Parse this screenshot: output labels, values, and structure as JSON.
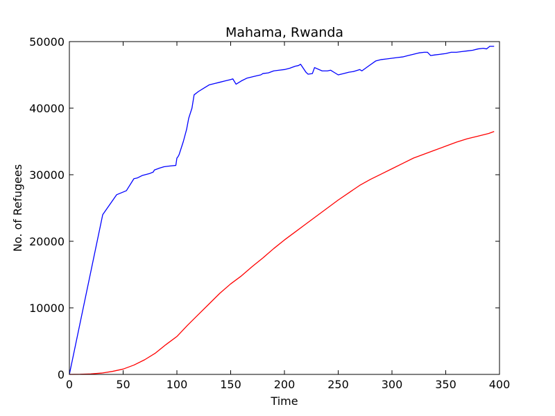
{
  "chart_data": {
    "type": "line",
    "title": "Mahama, Rwanda",
    "xlabel": "Time",
    "ylabel": "No. of Refugees",
    "xlim": [
      0,
      400
    ],
    "ylim": [
      0,
      50000
    ],
    "xticks": [
      0,
      50,
      100,
      150,
      200,
      250,
      300,
      350,
      400
    ],
    "yticks": [
      0,
      10000,
      20000,
      30000,
      40000,
      50000
    ],
    "grid": false,
    "legend": "none",
    "series": [
      {
        "color": "#0000ff",
        "points": [
          [
            0,
            0
          ],
          [
            31,
            24000
          ],
          [
            44,
            27000
          ],
          [
            53,
            27600
          ],
          [
            60,
            29400
          ],
          [
            63,
            29500
          ],
          [
            68,
            29900
          ],
          [
            75,
            30200
          ],
          [
            78,
            30400
          ],
          [
            79,
            30700
          ],
          [
            84,
            31000
          ],
          [
            88,
            31200
          ],
          [
            93,
            31300
          ],
          [
            99,
            31400
          ],
          [
            100,
            32500
          ],
          [
            101,
            32700
          ],
          [
            102,
            33000
          ],
          [
            106,
            35000
          ],
          [
            109,
            36800
          ],
          [
            111,
            38500
          ],
          [
            114,
            40000
          ],
          [
            116,
            42000
          ],
          [
            120,
            42500
          ],
          [
            125,
            43000
          ],
          [
            130,
            43500
          ],
          [
            135,
            43700
          ],
          [
            140,
            43900
          ],
          [
            145,
            44100
          ],
          [
            150,
            44300
          ],
          [
            152,
            44400
          ],
          [
            155,
            43600
          ],
          [
            160,
            44100
          ],
          [
            165,
            44500
          ],
          [
            170,
            44700
          ],
          [
            175,
            44900
          ],
          [
            178,
            45000
          ],
          [
            180,
            45200
          ],
          [
            185,
            45300
          ],
          [
            190,
            45600
          ],
          [
            195,
            45700
          ],
          [
            200,
            45800
          ],
          [
            205,
            46000
          ],
          [
            210,
            46300
          ],
          [
            213,
            46400
          ],
          [
            215,
            46600
          ],
          [
            220,
            45400
          ],
          [
            222,
            45100
          ],
          [
            226,
            45200
          ],
          [
            228,
            46100
          ],
          [
            235,
            45600
          ],
          [
            240,
            45600
          ],
          [
            243,
            45700
          ],
          [
            247,
            45300
          ],
          [
            250,
            45000
          ],
          [
            255,
            45200
          ],
          [
            260,
            45400
          ],
          [
            264,
            45500
          ],
          [
            270,
            45800
          ],
          [
            272,
            45600
          ],
          [
            278,
            46300
          ],
          [
            285,
            47100
          ],
          [
            290,
            47300
          ],
          [
            295,
            47400
          ],
          [
            300,
            47500
          ],
          [
            305,
            47600
          ],
          [
            310,
            47700
          ],
          [
            315,
            47900
          ],
          [
            320,
            48100
          ],
          [
            325,
            48300
          ],
          [
            330,
            48400
          ],
          [
            333,
            48400
          ],
          [
            336,
            47900
          ],
          [
            340,
            48000
          ],
          [
            345,
            48100
          ],
          [
            350,
            48200
          ],
          [
            355,
            48400
          ],
          [
            360,
            48400
          ],
          [
            365,
            48500
          ],
          [
            370,
            48600
          ],
          [
            375,
            48700
          ],
          [
            380,
            48900
          ],
          [
            385,
            49000
          ],
          [
            388,
            48900
          ],
          [
            391,
            49300
          ],
          [
            395,
            49300
          ]
        ]
      },
      {
        "color": "#ff0000",
        "points": [
          [
            0,
            0
          ],
          [
            10,
            20
          ],
          [
            20,
            80
          ],
          [
            30,
            200
          ],
          [
            40,
            450
          ],
          [
            50,
            800
          ],
          [
            60,
            1400
          ],
          [
            70,
            2200
          ],
          [
            80,
            3200
          ],
          [
            90,
            4500
          ],
          [
            100,
            5700
          ],
          [
            110,
            7400
          ],
          [
            120,
            9000
          ],
          [
            130,
            10600
          ],
          [
            140,
            12200
          ],
          [
            150,
            13600
          ],
          [
            160,
            14800
          ],
          [
            170,
            16200
          ],
          [
            180,
            17500
          ],
          [
            190,
            18900
          ],
          [
            200,
            20200
          ],
          [
            210,
            21400
          ],
          [
            220,
            22600
          ],
          [
            230,
            23800
          ],
          [
            240,
            25000
          ],
          [
            250,
            26200
          ],
          [
            260,
            27300
          ],
          [
            270,
            28400
          ],
          [
            280,
            29300
          ],
          [
            290,
            30100
          ],
          [
            300,
            30900
          ],
          [
            310,
            31700
          ],
          [
            320,
            32500
          ],
          [
            330,
            33100
          ],
          [
            340,
            33700
          ],
          [
            350,
            34300
          ],
          [
            360,
            34900
          ],
          [
            370,
            35400
          ],
          [
            380,
            35800
          ],
          [
            390,
            36200
          ],
          [
            395,
            36500
          ]
        ]
      }
    ]
  }
}
